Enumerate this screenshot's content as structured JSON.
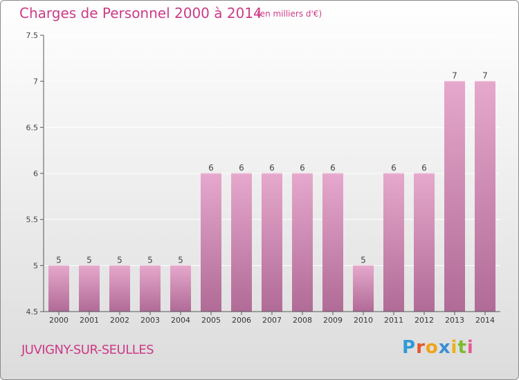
{
  "header": {
    "title": "Charges de Personnel 2000 à 2014",
    "unit": "(en milliers d'€)"
  },
  "footer": {
    "commune": "JUVIGNY-SUR-SEULLES",
    "logo_text": "Proxiti"
  },
  "colors": {
    "accent": "#cc3a86",
    "bar_top": "#e6a8cc",
    "bar_bottom": "#b06b96",
    "axis": "#555555",
    "grid": "#ffffff"
  },
  "chart_data": {
    "type": "bar",
    "title": "Charges de Personnel 2000 à 2014",
    "subtitle": "(en milliers d'€)",
    "xlabel": "",
    "ylabel": "",
    "categories": [
      "2000",
      "2001",
      "2002",
      "2003",
      "2004",
      "2005",
      "2006",
      "2007",
      "2008",
      "2009",
      "2010",
      "2011",
      "2012",
      "2013",
      "2014"
    ],
    "values": [
      5,
      5,
      5,
      5,
      5,
      6,
      6,
      6,
      6,
      6,
      5,
      6,
      6,
      7,
      7
    ],
    "data_labels": [
      "5",
      "5",
      "5",
      "5",
      "5",
      "6",
      "6",
      "6",
      "6",
      "6",
      "5",
      "6",
      "6",
      "7",
      "7"
    ],
    "ylim": [
      4.5,
      7.5
    ],
    "yticks": [
      4.5,
      5,
      5.5,
      6,
      6.5,
      7,
      7.5
    ],
    "ytick_labels": [
      "4.5",
      "5",
      "5.5",
      "6",
      "6.5",
      "7",
      "7.5"
    ],
    "grid": true,
    "legend": "none"
  }
}
